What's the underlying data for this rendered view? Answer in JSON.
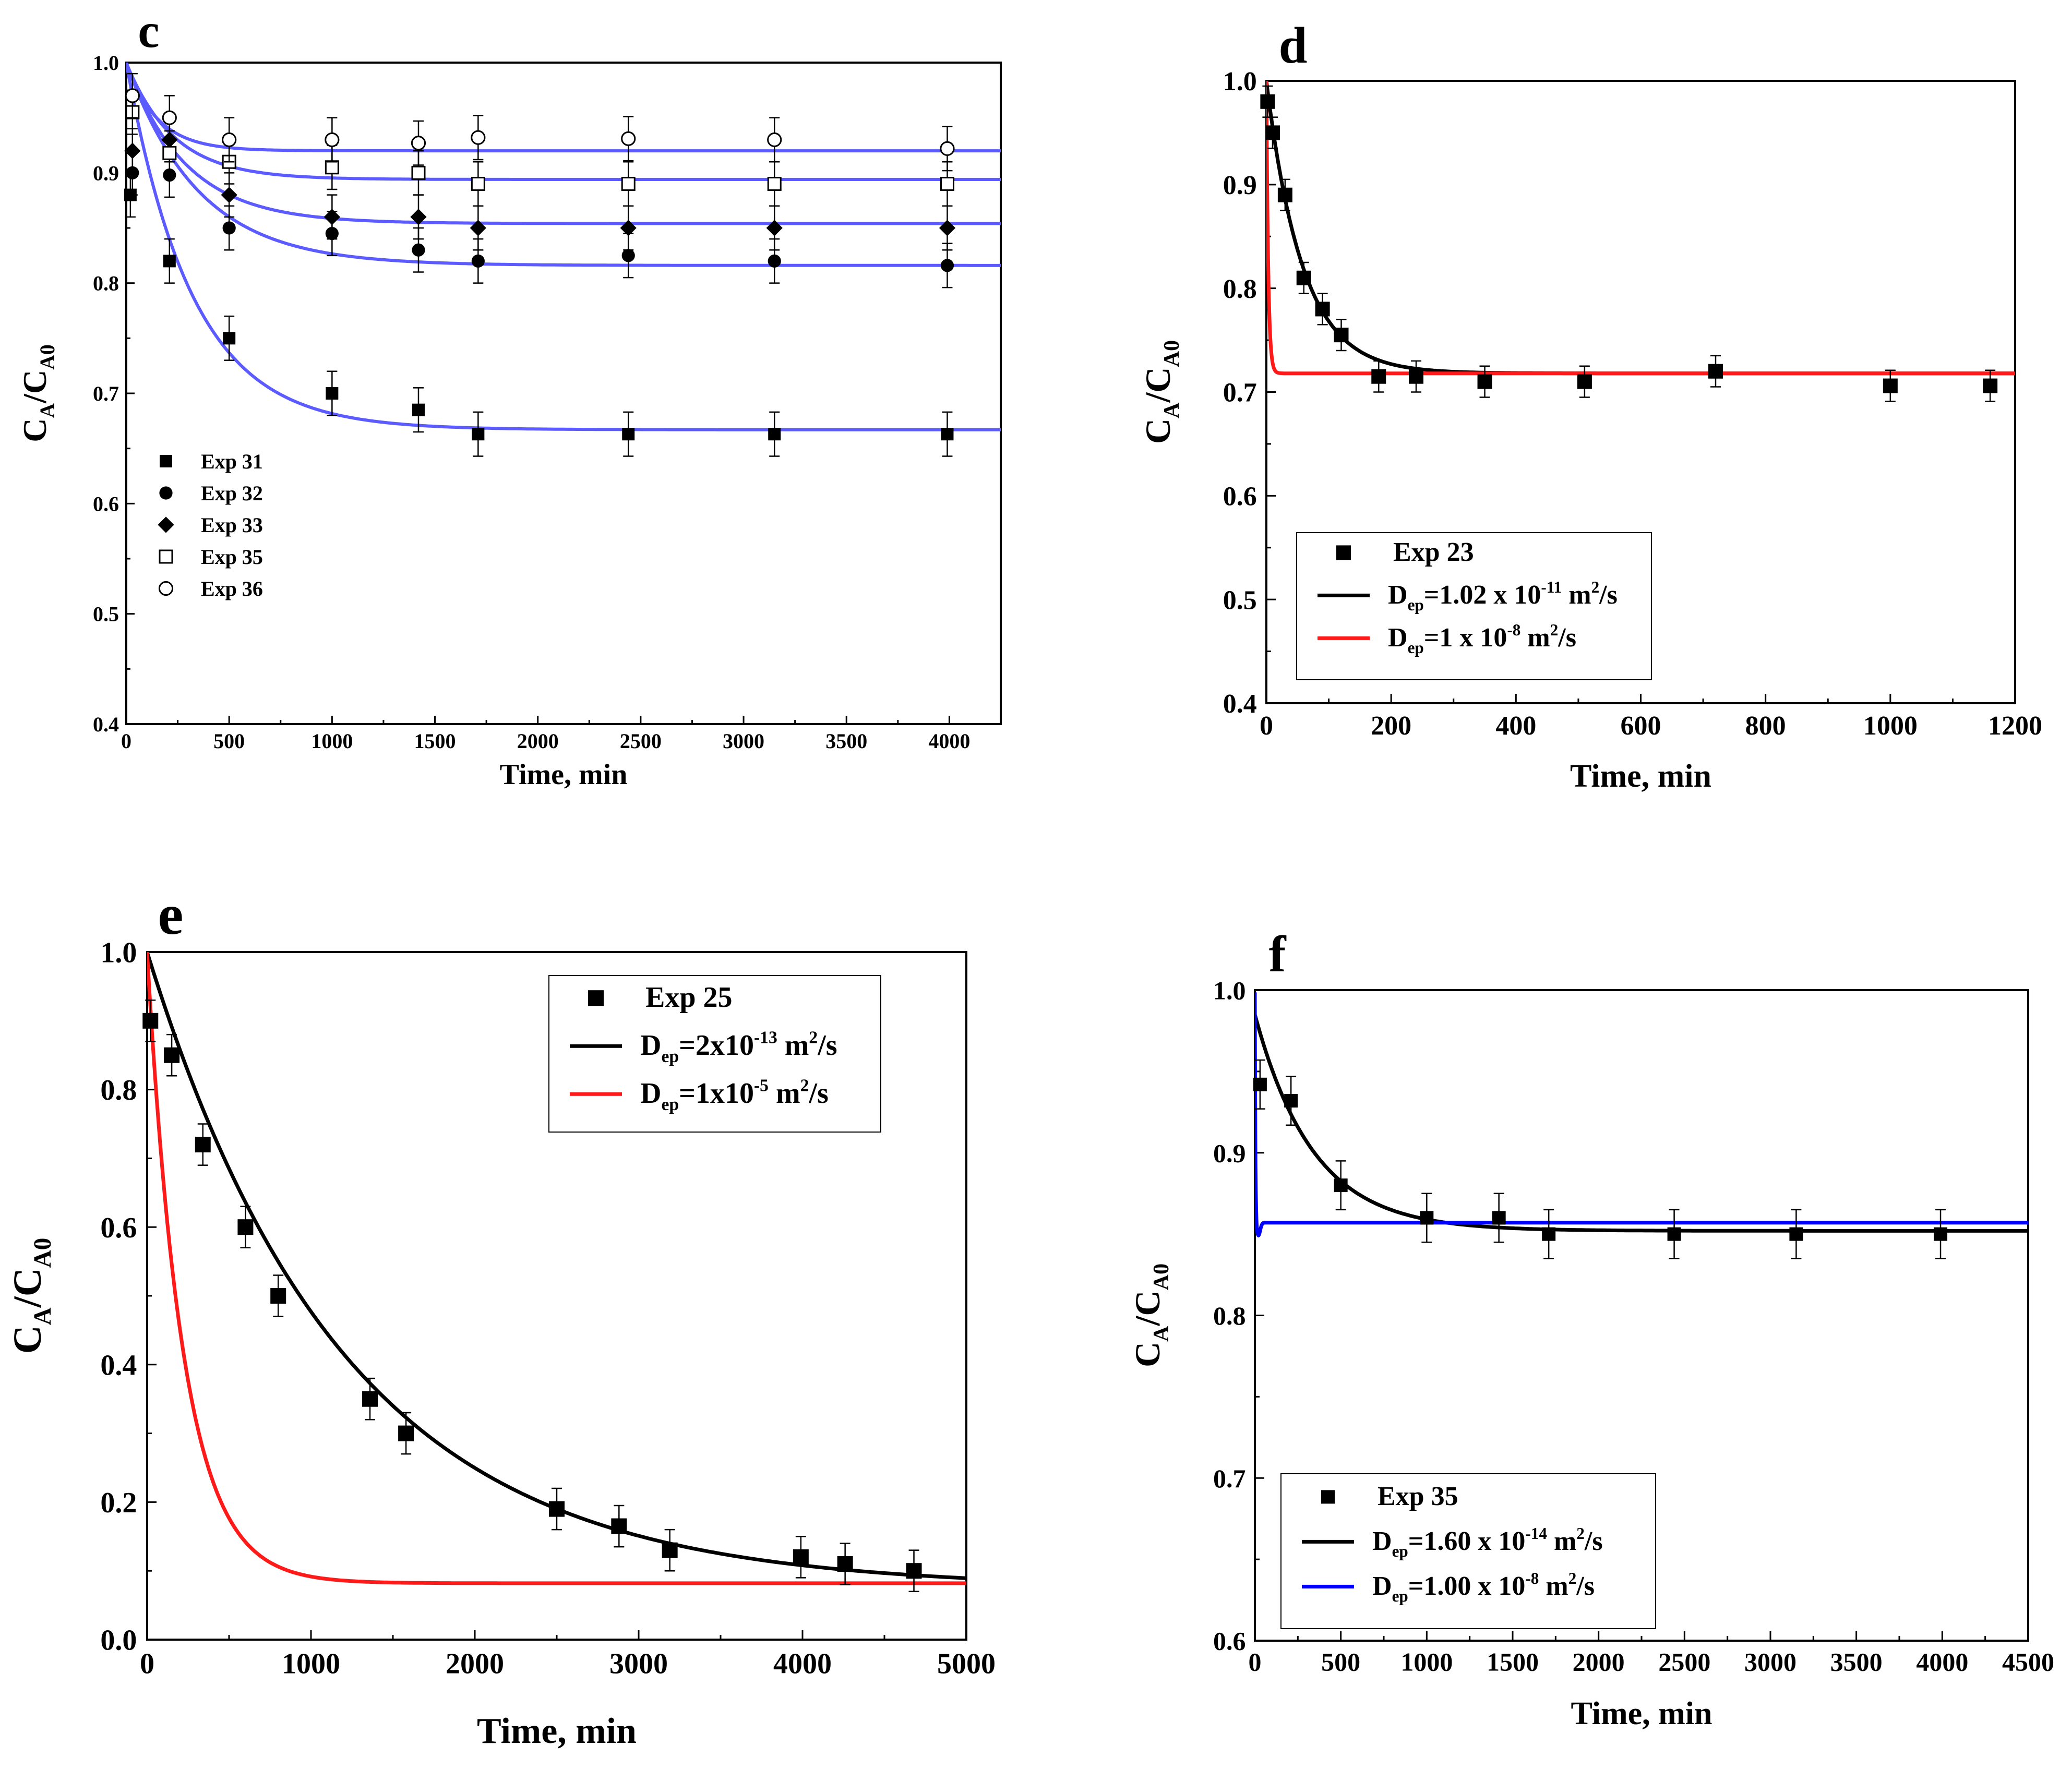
{
  "colors": {
    "axis": "#000000",
    "black": "#000000",
    "red": "#ff1a1a",
    "blue": "#0000ff",
    "fit_blue": "#5b5bff"
  },
  "chart_data": [
    {
      "panel": "c",
      "type": "scatter",
      "xlabel": "Time, min",
      "ylabel_main": "C",
      "ylabel_sub1": "A",
      "ylabel_mid": "/C",
      "ylabel_sub2": "A0",
      "xlim": [
        0,
        4250
      ],
      "ylim": [
        0.4,
        1.0
      ],
      "xticks": [
        0,
        500,
        1000,
        1500,
        2000,
        2500,
        3000,
        3500,
        4000
      ],
      "xtick_labels": [
        "0",
        "500",
        "1000",
        "1500",
        "2000",
        "2500",
        "3000",
        "3500",
        "4000"
      ],
      "yticks": [
        0.4,
        0.5,
        0.6,
        0.7,
        0.8,
        0.9,
        1.0
      ],
      "ytick_labels": [
        "0.4",
        "0.5",
        "0.6",
        "0.7",
        "0.8",
        "0.9",
        "1.0"
      ],
      "series": [
        {
          "name": "Exp 31",
          "marker": "square-filled",
          "x": [
            20,
            210,
            500,
            1000,
            1420,
            1710,
            2440,
            3150,
            3990
          ],
          "y": [
            0.88,
            0.82,
            0.75,
            0.7,
            0.685,
            0.663,
            0.663,
            0.663,
            0.663
          ],
          "err": 0.02
        },
        {
          "name": "Exp 32",
          "marker": "circle-filled",
          "x": [
            30,
            210,
            500,
            1000,
            1420,
            1710,
            2440,
            3150,
            3990
          ],
          "y": [
            0.9,
            0.898,
            0.85,
            0.845,
            0.83,
            0.82,
            0.825,
            0.82,
            0.816
          ],
          "err": 0.02
        },
        {
          "name": "Exp 33",
          "marker": "diamond-filled",
          "x": [
            30,
            210,
            500,
            1000,
            1420,
            1710,
            2440,
            3150,
            3990
          ],
          "y": [
            0.92,
            0.93,
            0.88,
            0.86,
            0.86,
            0.85,
            0.85,
            0.85,
            0.85
          ],
          "err": 0.02
        },
        {
          "name": "Exp 35",
          "marker": "square-open",
          "x": [
            30,
            210,
            500,
            1000,
            1420,
            1710,
            2440,
            3150,
            3990
          ],
          "y": [
            0.955,
            0.918,
            0.91,
            0.905,
            0.9,
            0.89,
            0.89,
            0.89,
            0.89
          ],
          "err": 0.02
        },
        {
          "name": "Exp 36",
          "marker": "circle-open",
          "x": [
            30,
            210,
            500,
            1000,
            1420,
            1710,
            2440,
            3150,
            3990
          ],
          "y": [
            0.97,
            0.95,
            0.93,
            0.93,
            0.927,
            0.932,
            0.931,
            0.93,
            0.922
          ],
          "err": 0.02
        }
      ],
      "fits": [
        {
          "for": "Exp 31",
          "color": "fit_blue",
          "y0": 1.0,
          "yinf": 0.667,
          "tau": 320
        },
        {
          "for": "Exp 32",
          "color": "fit_blue",
          "y0": 1.0,
          "yinf": 0.816,
          "tau": 350
        },
        {
          "for": "Exp 33",
          "color": "fit_blue",
          "y0": 1.0,
          "yinf": 0.854,
          "tau": 290
        },
        {
          "for": "Exp 35",
          "color": "fit_blue",
          "y0": 1.0,
          "yinf": 0.894,
          "tau": 230
        },
        {
          "for": "Exp 36",
          "color": "fit_blue",
          "y0": 1.0,
          "yinf": 0.92,
          "tau": 150
        }
      ],
      "legend_placement": "middle-left"
    },
    {
      "panel": "d",
      "type": "scatter",
      "xlabel": "Time, min",
      "ylabel_main": "C",
      "ylabel_sub1": "A",
      "ylabel_mid": "/C",
      "ylabel_sub2": "A0",
      "xlim": [
        0,
        1200
      ],
      "ylim": [
        0.4,
        1.0
      ],
      "xticks": [
        0,
        200,
        400,
        600,
        800,
        1000,
        1200
      ],
      "xtick_labels": [
        "0",
        "200",
        "400",
        "600",
        "800",
        "1000",
        "1200"
      ],
      "yticks": [
        0.4,
        0.5,
        0.6,
        0.7,
        0.8,
        0.9,
        1.0
      ],
      "ytick_labels": [
        "0.4",
        "0.5",
        "0.6",
        "0.7",
        "0.8",
        "0.9",
        "1.0"
      ],
      "series": [
        {
          "name": "Exp 23",
          "marker": "square-filled",
          "x": [
            2,
            10,
            30,
            60,
            90,
            120,
            180,
            240,
            350,
            510,
            720,
            1000,
            1160
          ],
          "y": [
            0.98,
            0.95,
            0.89,
            0.81,
            0.78,
            0.755,
            0.715,
            0.715,
            0.71,
            0.71,
            0.72,
            0.706,
            0.706
          ],
          "err": 0.015
        }
      ],
      "fits": [
        {
          "for": "Exp 23",
          "color": "black",
          "y0": 1.0,
          "yinf": 0.718,
          "tau": 58
        },
        {
          "for": "Exp 23",
          "color": "red",
          "y0": 1.0,
          "yinf": 0.718,
          "tau": 3
        }
      ],
      "legend": [
        {
          "marker": "square-filled",
          "label": "Exp 23"
        },
        {
          "line": "black",
          "d": "D",
          "sub": "ep",
          "main": "=1.02 x 10",
          "exp": "-11",
          "unit": " m",
          "unit_exp": "2",
          "unit_tail": "/s"
        },
        {
          "line": "red",
          "d": "D",
          "sub": "ep",
          "main": "=1 x 10",
          "exp": "-8",
          "unit": " m",
          "unit_exp": "2",
          "unit_tail": "/s"
        }
      ],
      "legend_placement": "bottom-left"
    },
    {
      "panel": "e",
      "type": "scatter",
      "xlabel": "Time, min",
      "ylabel_main": "C",
      "ylabel_sub1": "A",
      "ylabel_mid": "/C",
      "ylabel_sub2": "A0",
      "xlim": [
        0,
        5000
      ],
      "ylim": [
        0.0,
        1.0
      ],
      "xticks": [
        0,
        1000,
        2000,
        3000,
        4000,
        5000
      ],
      "xtick_labels": [
        "0",
        "1000",
        "2000",
        "3000",
        "4000",
        "5000"
      ],
      "yticks": [
        0.0,
        0.2,
        0.4,
        0.6,
        0.8,
        1.0
      ],
      "ytick_labels": [
        "0.0",
        "0.2",
        "0.4",
        "0.6",
        "0.8",
        "1.0"
      ],
      "series": [
        {
          "name": "Exp 25",
          "marker": "square-filled",
          "x": [
            20,
            150,
            340,
            600,
            800,
            1360,
            1580,
            2500,
            2880,
            3190,
            3990,
            4260,
            4680
          ],
          "y": [
            0.9,
            0.85,
            0.72,
            0.6,
            0.5,
            0.35,
            0.3,
            0.19,
            0.165,
            0.13,
            0.12,
            0.11,
            0.1
          ],
          "err": 0.03
        }
      ],
      "fits": [
        {
          "for": "Exp 25",
          "color": "black",
          "y0": 1.0,
          "yinf": 0.075,
          "tau": 1200
        },
        {
          "for": "Exp 25",
          "color": "red",
          "y0": 1.0,
          "yinf": 0.082,
          "tau": 220
        }
      ],
      "legend": [
        {
          "marker": "square-filled",
          "label": "Exp 25"
        },
        {
          "line": "black",
          "d": "D",
          "sub": "ep",
          "main": "=2x10",
          "exp": "-13",
          "unit": " m",
          "unit_exp": "2",
          "unit_tail": "/s"
        },
        {
          "line": "red",
          "d": "D",
          "sub": "ep",
          "main": "=1x10",
          "exp": "-5",
          "unit": " m",
          "unit_exp": "2",
          "unit_tail": "/s"
        }
      ],
      "legend_placement": "top-right"
    },
    {
      "panel": "f",
      "type": "scatter",
      "xlabel": "Time, min",
      "ylabel_main": "C",
      "ylabel_sub1": "A",
      "ylabel_mid": "/C",
      "ylabel_sub2": "A0",
      "xlim": [
        0,
        4500
      ],
      "ylim": [
        0.6,
        1.0
      ],
      "xticks": [
        0,
        500,
        1000,
        1500,
        2000,
        2500,
        3000,
        3500,
        4000,
        4500
      ],
      "xtick_labels": [
        "0",
        "500",
        "1000",
        "1500",
        "2000",
        "2500",
        "3000",
        "3500",
        "4000",
        "4500"
      ],
      "yticks": [
        0.6,
        0.7,
        0.8,
        0.9,
        1.0
      ],
      "ytick_labels": [
        "0.6",
        "0.7",
        "0.8",
        "0.9",
        "1.0"
      ],
      "series": [
        {
          "name": "Exp 35",
          "marker": "square-filled",
          "x": [
            30,
            210,
            500,
            1000,
            1420,
            1710,
            2440,
            3150,
            3990
          ],
          "y": [
            0.942,
            0.932,
            0.88,
            0.86,
            0.86,
            0.85,
            0.85,
            0.85,
            0.85
          ],
          "err": 0.015
        }
      ],
      "fits": [
        {
          "for": "Exp 35",
          "color": "black",
          "y0": 0.985,
          "yinf": 0.852,
          "tau": 340
        },
        {
          "for": "Exp 35",
          "color": "blue",
          "y0": 1.0,
          "yinf": 0.857,
          "tau": 3,
          "dip": 0.849
        }
      ],
      "legend": [
        {
          "marker": "square-filled",
          "label": "Exp 35"
        },
        {
          "line": "black",
          "d": "D",
          "sub": "ep",
          "main": "=1.60 x 10",
          "exp": "-14",
          "unit": " m",
          "unit_exp": "2",
          "unit_tail": "/s"
        },
        {
          "line": "blue",
          "d": "D",
          "sub": "ep",
          "main": "=1.00 x 10",
          "exp": "-8",
          "unit": " m",
          "unit_exp": "2",
          "unit_tail": "/s"
        }
      ],
      "legend_placement": "bottom-left"
    }
  ]
}
